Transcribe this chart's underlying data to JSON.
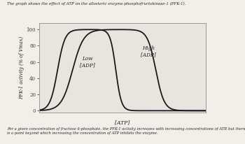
{
  "title": "The graph shows the effect of ATP on the allosteric enzyme phosphofructokinase-1 (PFK-1).",
  "ylabel": "PFK-1 activity (% of Vmax)",
  "xlabel": "[ATP]",
  "yticks": [
    0,
    20,
    40,
    60,
    80,
    100
  ],
  "ylim": [
    -2,
    108
  ],
  "xlim": [
    0,
    10
  ],
  "label_low": "Low\n[ADP]",
  "label_high": "High\n[ADP]",
  "footnote": "For a given concentration of fructose 6-phosphate, the PFK-1 activity increases with increasing concentrations of ATP, but there\nis a point beyond which increasing the concentration of ATP inhibits the enzyme.",
  "curve_color": "#1a1a1a",
  "background": "#f2efe9",
  "plot_bg": "#e8e5df",
  "spine_color": "#999999"
}
